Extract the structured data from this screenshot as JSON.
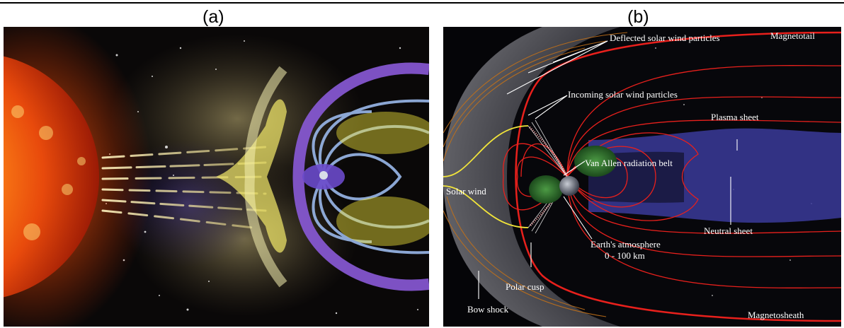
{
  "panels": [
    {
      "label": "(a)"
    },
    {
      "label": "(b)"
    }
  ],
  "diagram_b": {
    "labels": {
      "magnetotail": "Magnetotail",
      "deflected": "Deflected solar wind particles",
      "incoming": "Incoming solar wind particles",
      "plasma_sheet": "Plasma sheet",
      "van_allen": "Van Allen radiation belt",
      "solar_wind": "Solar wind",
      "neutral_sheet": "Neutral sheet",
      "atmosphere_line1": "Earth's atmosphere",
      "atmosphere_line2": "0 - 100 km",
      "polar_cusp": "Polar cusp",
      "bow_shock": "Bow shock",
      "magnetosheath": "Magnetosheath"
    }
  },
  "colors": {
    "field_line_red": "#e8201c",
    "solar_wind_yellow": "#f2e53a",
    "plasma_sheet_blue": "#3a3a9a",
    "belt_green": "#3f8a3a",
    "sun_orange": "#f05a10",
    "magnetosphere_violet": "#8a5ad8"
  }
}
